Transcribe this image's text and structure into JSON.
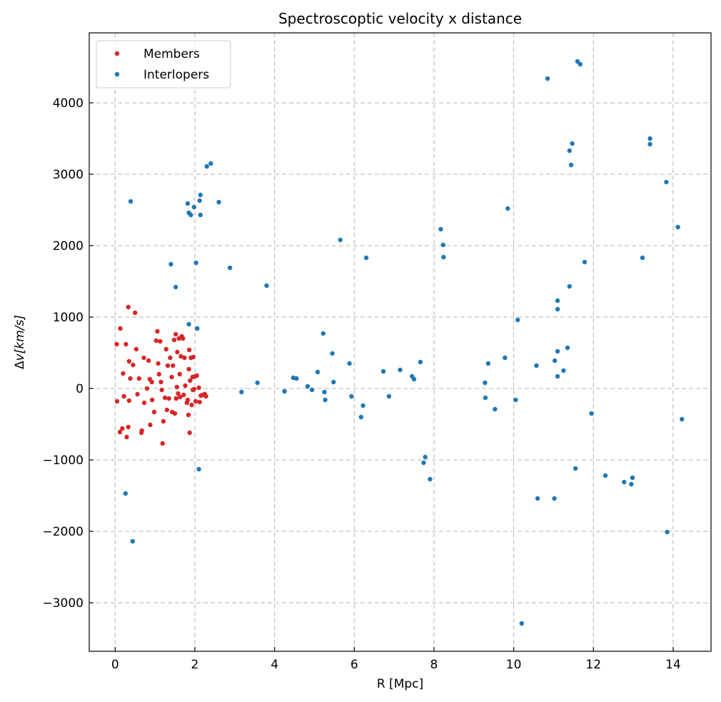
{
  "chart_data": {
    "type": "scatter",
    "title": "Spectroscoptic velocity x distance",
    "xlabel": "R [Mpc]",
    "ylabel_prefix": "Δ",
    "ylabel_italic": "v[km/s]",
    "xlim": [
      -0.65,
      14.95
    ],
    "ylim": [
      -3680,
      4980
    ],
    "xticks": [
      0,
      2,
      4,
      6,
      8,
      10,
      12,
      14
    ],
    "yticks": [
      -3000,
      -2000,
      -1000,
      0,
      1000,
      2000,
      3000,
      4000
    ],
    "grid": true,
    "legend_position": "upper-left",
    "series": [
      {
        "name": "Members",
        "color": "#d62728",
        "points": [
          [
            0.04,
            620
          ],
          [
            0.05,
            -180
          ],
          [
            0.13,
            840
          ],
          [
            0.12,
            -610
          ],
          [
            0.2,
            210
          ],
          [
            0.18,
            -560
          ],
          [
            0.22,
            -110
          ],
          [
            0.27,
            620
          ],
          [
            0.29,
            -680
          ],
          [
            0.33,
            -540
          ],
          [
            0.33,
            1140
          ],
          [
            0.35,
            380
          ],
          [
            0.35,
            -170
          ],
          [
            0.38,
            140
          ],
          [
            0.45,
            330
          ],
          [
            0.5,
            1060
          ],
          [
            0.53,
            550
          ],
          [
            0.56,
            -80
          ],
          [
            0.6,
            140
          ],
          [
            0.66,
            -620
          ],
          [
            0.67,
            -590
          ],
          [
            0.72,
            430
          ],
          [
            0.73,
            -200
          ],
          [
            0.8,
            0
          ],
          [
            0.84,
            390
          ],
          [
            0.87,
            130
          ],
          [
            0.88,
            -510
          ],
          [
            0.92,
            90
          ],
          [
            0.93,
            -160
          ],
          [
            0.98,
            -330
          ],
          [
            1.03,
            670
          ],
          [
            1.06,
            800
          ],
          [
            1.08,
            350
          ],
          [
            1.1,
            200
          ],
          [
            1.13,
            660
          ],
          [
            1.15,
            90
          ],
          [
            1.17,
            -20
          ],
          [
            1.19,
            -770
          ],
          [
            1.21,
            -460
          ],
          [
            1.25,
            -130
          ],
          [
            1.28,
            550
          ],
          [
            1.3,
            -300
          ],
          [
            1.32,
            320
          ],
          [
            1.35,
            -140
          ],
          [
            1.38,
            430
          ],
          [
            1.42,
            160
          ],
          [
            1.43,
            -330
          ],
          [
            1.45,
            320
          ],
          [
            1.48,
            680
          ],
          [
            1.5,
            -350
          ],
          [
            1.52,
            760
          ],
          [
            1.53,
            -140
          ],
          [
            1.55,
            20
          ],
          [
            1.56,
            510
          ],
          [
            1.58,
            -70
          ],
          [
            1.6,
            700
          ],
          [
            1.62,
            200
          ],
          [
            1.63,
            -120
          ],
          [
            1.65,
            450
          ],
          [
            1.67,
            730
          ],
          [
            1.7,
            700
          ],
          [
            1.72,
            -90
          ],
          [
            1.74,
            430
          ],
          [
            1.76,
            40
          ],
          [
            1.8,
            -200
          ],
          [
            1.82,
            -160
          ],
          [
            1.84,
            -370
          ],
          [
            1.85,
            270
          ],
          [
            1.86,
            540
          ],
          [
            1.87,
            -620
          ],
          [
            1.88,
            110
          ],
          [
            1.9,
            430
          ],
          [
            1.92,
            -230
          ],
          [
            1.94,
            160
          ],
          [
            1.96,
            440
          ],
          [
            1.98,
            -10
          ],
          [
            2.02,
            -180
          ],
          [
            2.05,
            180
          ],
          [
            2.1,
            10
          ],
          [
            2.12,
            -190
          ],
          [
            2.15,
            -100
          ],
          [
            2.2,
            -90
          ],
          [
            2.25,
            -80
          ],
          [
            2.28,
            -110
          ],
          [
            2.0,
            170
          ],
          [
            1.95,
            -20
          ]
        ]
      },
      {
        "name": "Interlopers",
        "color": "#1f77b4",
        "points": [
          [
            0.26,
            -1470
          ],
          [
            0.39,
            2620
          ],
          [
            0.44,
            -2140
          ],
          [
            1.4,
            1740
          ],
          [
            1.52,
            1420
          ],
          [
            1.82,
            2590
          ],
          [
            1.85,
            2460
          ],
          [
            1.9,
            2430
          ],
          [
            1.85,
            900
          ],
          [
            1.98,
            2540
          ],
          [
            2.03,
            1760
          ],
          [
            2.06,
            840
          ],
          [
            2.1,
            -1130
          ],
          [
            2.12,
            2630
          ],
          [
            2.14,
            2710
          ],
          [
            2.14,
            2430
          ],
          [
            2.3,
            3110
          ],
          [
            2.4,
            3150
          ],
          [
            2.6,
            2610
          ],
          [
            2.88,
            1690
          ],
          [
            3.17,
            -50
          ],
          [
            3.57,
            80
          ],
          [
            3.8,
            1440
          ],
          [
            4.25,
            -40
          ],
          [
            4.47,
            150
          ],
          [
            4.55,
            140
          ],
          [
            4.83,
            30
          ],
          [
            4.94,
            -20
          ],
          [
            5.08,
            230
          ],
          [
            5.22,
            770
          ],
          [
            5.25,
            -50
          ],
          [
            5.27,
            -160
          ],
          [
            5.45,
            490
          ],
          [
            5.48,
            90
          ],
          [
            5.65,
            2080
          ],
          [
            5.88,
            350
          ],
          [
            5.93,
            -110
          ],
          [
            6.17,
            -400
          ],
          [
            6.22,
            -240
          ],
          [
            6.3,
            1830
          ],
          [
            6.73,
            240
          ],
          [
            6.87,
            -110
          ],
          [
            7.15,
            260
          ],
          [
            7.45,
            170
          ],
          [
            7.5,
            130
          ],
          [
            7.66,
            370
          ],
          [
            7.74,
            -1040
          ],
          [
            7.78,
            -960
          ],
          [
            7.9,
            -1270
          ],
          [
            8.17,
            2230
          ],
          [
            8.23,
            2010
          ],
          [
            8.24,
            1840
          ],
          [
            9.28,
            80
          ],
          [
            9.29,
            -130
          ],
          [
            9.36,
            350
          ],
          [
            9.53,
            -290
          ],
          [
            9.78,
            430
          ],
          [
            9.85,
            2520
          ],
          [
            10.05,
            -160
          ],
          [
            10.1,
            960
          ],
          [
            10.2,
            -3290
          ],
          [
            10.57,
            320
          ],
          [
            10.6,
            -1540
          ],
          [
            10.85,
            4340
          ],
          [
            11.02,
            -1540
          ],
          [
            11.03,
            390
          ],
          [
            11.1,
            1230
          ],
          [
            11.1,
            1110
          ],
          [
            11.1,
            520
          ],
          [
            11.1,
            170
          ],
          [
            11.25,
            250
          ],
          [
            11.35,
            570
          ],
          [
            11.4,
            3330
          ],
          [
            11.4,
            1430
          ],
          [
            11.44,
            3130
          ],
          [
            11.47,
            3430
          ],
          [
            11.55,
            -1120
          ],
          [
            11.6,
            4580
          ],
          [
            11.67,
            4540
          ],
          [
            11.78,
            1770
          ],
          [
            11.95,
            -350
          ],
          [
            12.3,
            -1220
          ],
          [
            12.77,
            -1310
          ],
          [
            12.95,
            -1340
          ],
          [
            12.98,
            -1250
          ],
          [
            13.23,
            1830
          ],
          [
            13.83,
            2890
          ],
          [
            13.85,
            -2010
          ],
          [
            13.42,
            3500
          ],
          [
            13.42,
            3420
          ],
          [
            14.12,
            2260
          ],
          [
            14.22,
            -430
          ]
        ]
      }
    ]
  }
}
